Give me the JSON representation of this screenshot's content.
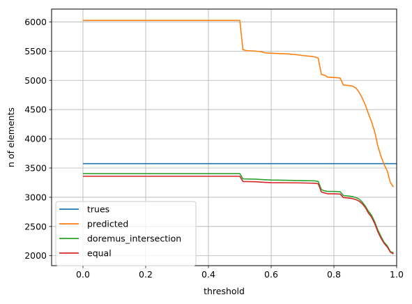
{
  "chart_data": {
    "type": "line",
    "title": "",
    "xlabel": "threshold",
    "ylabel": "n of elements",
    "xlim": [
      -0.1,
      1.0
    ],
    "ylim": [
      1830,
      6220
    ],
    "x_ticks": [
      0.0,
      0.2,
      0.4,
      0.6,
      0.8,
      1.0
    ],
    "x_tick_labels": [
      "0.0",
      "0.2",
      "0.4",
      "0.6",
      "0.8",
      "1.0"
    ],
    "y_ticks": [
      2000,
      2500,
      3000,
      3500,
      4000,
      4500,
      5000,
      5500,
      6000
    ],
    "y_tick_labels": [
      "2000",
      "2500",
      "3000",
      "3500",
      "4000",
      "4500",
      "5000",
      "5500",
      "6000"
    ],
    "grid": true,
    "legend_position": "lower-left",
    "series": [
      {
        "name": "trues",
        "color": "#1f77b4",
        "points": [
          [
            0.0,
            3575
          ],
          [
            1.0,
            3575
          ]
        ]
      },
      {
        "name": "predicted",
        "color": "#ff7f0e",
        "points": [
          [
            0.0,
            6025
          ],
          [
            0.1,
            6025
          ],
          [
            0.2,
            6025
          ],
          [
            0.3,
            6025
          ],
          [
            0.4,
            6025
          ],
          [
            0.5,
            6025
          ],
          [
            0.51,
            5525
          ],
          [
            0.52,
            5510
          ],
          [
            0.55,
            5500
          ],
          [
            0.57,
            5490
          ],
          [
            0.58,
            5470
          ],
          [
            0.62,
            5460
          ],
          [
            0.66,
            5450
          ],
          [
            0.68,
            5440
          ],
          [
            0.7,
            5425
          ],
          [
            0.73,
            5410
          ],
          [
            0.74,
            5400
          ],
          [
            0.75,
            5380
          ],
          [
            0.76,
            5100
          ],
          [
            0.77,
            5090
          ],
          [
            0.78,
            5055
          ],
          [
            0.8,
            5050
          ],
          [
            0.82,
            5040
          ],
          [
            0.83,
            4920
          ],
          [
            0.85,
            4910
          ],
          [
            0.86,
            4900
          ],
          [
            0.87,
            4870
          ],
          [
            0.88,
            4800
          ],
          [
            0.89,
            4700
          ],
          [
            0.9,
            4580
          ],
          [
            0.91,
            4430
          ],
          [
            0.92,
            4290
          ],
          [
            0.93,
            4120
          ],
          [
            0.94,
            3880
          ],
          [
            0.95,
            3700
          ],
          [
            0.96,
            3560
          ],
          [
            0.97,
            3450
          ],
          [
            0.98,
            3250
          ],
          [
            0.99,
            3175
          ]
        ]
      },
      {
        "name": "doremus_intersection",
        "color": "#2ca02c",
        "points": [
          [
            0.0,
            3405
          ],
          [
            0.1,
            3405
          ],
          [
            0.2,
            3405
          ],
          [
            0.3,
            3405
          ],
          [
            0.4,
            3405
          ],
          [
            0.5,
            3405
          ],
          [
            0.51,
            3315
          ],
          [
            0.55,
            3310
          ],
          [
            0.58,
            3300
          ],
          [
            0.6,
            3295
          ],
          [
            0.65,
            3290
          ],
          [
            0.7,
            3285
          ],
          [
            0.74,
            3280
          ],
          [
            0.75,
            3270
          ],
          [
            0.76,
            3130
          ],
          [
            0.77,
            3110
          ],
          [
            0.78,
            3100
          ],
          [
            0.8,
            3100
          ],
          [
            0.82,
            3095
          ],
          [
            0.83,
            3030
          ],
          [
            0.85,
            3020
          ],
          [
            0.86,
            3010
          ],
          [
            0.87,
            2995
          ],
          [
            0.88,
            2970
          ],
          [
            0.89,
            2920
          ],
          [
            0.9,
            2850
          ],
          [
            0.91,
            2760
          ],
          [
            0.92,
            2690
          ],
          [
            0.93,
            2580
          ],
          [
            0.94,
            2440
          ],
          [
            0.95,
            2330
          ],
          [
            0.96,
            2230
          ],
          [
            0.97,
            2170
          ],
          [
            0.98,
            2070
          ],
          [
            0.99,
            2050
          ]
        ]
      },
      {
        "name": "equal",
        "color": "#d62728",
        "points": [
          [
            0.0,
            3360
          ],
          [
            0.1,
            3360
          ],
          [
            0.2,
            3360
          ],
          [
            0.3,
            3360
          ],
          [
            0.4,
            3360
          ],
          [
            0.5,
            3360
          ],
          [
            0.51,
            3270
          ],
          [
            0.55,
            3265
          ],
          [
            0.58,
            3255
          ],
          [
            0.6,
            3250
          ],
          [
            0.65,
            3248
          ],
          [
            0.7,
            3245
          ],
          [
            0.74,
            3240
          ],
          [
            0.75,
            3230
          ],
          [
            0.76,
            3090
          ],
          [
            0.77,
            3075
          ],
          [
            0.78,
            3060
          ],
          [
            0.8,
            3060
          ],
          [
            0.82,
            3055
          ],
          [
            0.83,
            2995
          ],
          [
            0.85,
            2985
          ],
          [
            0.86,
            2975
          ],
          [
            0.87,
            2960
          ],
          [
            0.88,
            2935
          ],
          [
            0.89,
            2890
          ],
          [
            0.9,
            2825
          ],
          [
            0.91,
            2730
          ],
          [
            0.92,
            2660
          ],
          [
            0.93,
            2550
          ],
          [
            0.94,
            2410
          ],
          [
            0.95,
            2300
          ],
          [
            0.96,
            2210
          ],
          [
            0.97,
            2150
          ],
          [
            0.98,
            2060
          ],
          [
            0.99,
            2030
          ]
        ]
      }
    ]
  }
}
